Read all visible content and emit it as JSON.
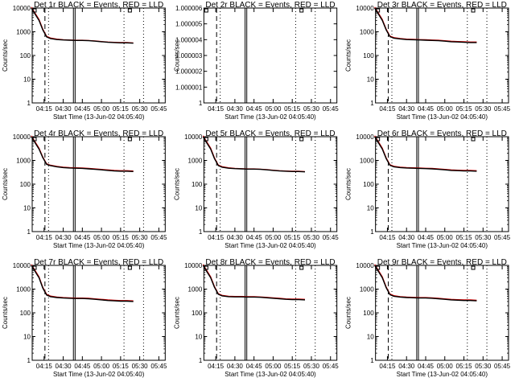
{
  "colors": {
    "events": "#000000",
    "lld": "#d40000",
    "background": "#ffffff",
    "axes": "#000000"
  },
  "chart_data": [
    {
      "type": "line",
      "title": "Det 1r BLACK = Events, RED = LLD",
      "xlabel": "Start Time (13-Jun-02 04:05:40)",
      "ylabel": "Counts/sec",
      "y_scale": "log",
      "ylim": [
        1,
        10000
      ],
      "ytick_labels": [
        "1",
        "10",
        "100",
        "1000",
        "10000"
      ],
      "xlim": [
        "04:05:40",
        "05:50:00"
      ],
      "xtick_labels": [
        "04:15",
        "04:30",
        "04:45",
        "05:00",
        "05:15",
        "05:30",
        "05:45"
      ],
      "x": [
        "04:05",
        "04:08",
        "04:11",
        "04:14",
        "04:17",
        "04:20",
        "04:25",
        "04:30",
        "04:35",
        "04:40",
        "04:45",
        "04:50",
        "04:55",
        "05:00",
        "05:05",
        "05:10",
        "05:15",
        "05:20",
        "05:25"
      ],
      "series": [
        {
          "name": "Events",
          "values": [
            10000,
            5500,
            3000,
            1200,
            600,
            520,
            470,
            450,
            440,
            430,
            430,
            420,
            400,
            380,
            360,
            350,
            340,
            340,
            330
          ]
        },
        {
          "name": "LLD",
          "values": [
            11000,
            6000,
            3300,
            1300,
            640,
            550,
            490,
            460,
            450,
            440,
            440,
            430,
            410,
            390,
            370,
            360,
            350,
            350,
            340
          ]
        }
      ]
    },
    {
      "type": "line",
      "title": "Det 2r BLACK = Events, RED = LLD",
      "xlabel": "Start Time (13-Jun-02 04:05:40)",
      "ylabel": "Counts/sec",
      "y_scale": "log",
      "ylim": [
        1,
        1.000006
      ],
      "ytick_labels": [
        "1",
        "1.000001",
        "1.000002",
        "1.000003",
        "1.000004",
        "1.000005",
        "1.000006"
      ],
      "xlim": [
        "04:05:40",
        "05:50:00"
      ],
      "xtick_labels": [
        "04:15",
        "04:30",
        "04:45",
        "05:00",
        "05:15",
        "05:30",
        "05:45"
      ],
      "x": [],
      "series": []
    },
    {
      "type": "line",
      "title": "Det 3r BLACK = Events, RED = LLD",
      "xlabel": "Start Time (13-Jun-02 04:05:40)",
      "ylabel": "Counts/sec",
      "y_scale": "log",
      "ylim": [
        1,
        10000
      ],
      "ytick_labels": [
        "1",
        "10",
        "100",
        "1000",
        "10000"
      ],
      "xlim": [
        "04:05:40",
        "05:50:00"
      ],
      "xtick_labels": [
        "04:15",
        "04:30",
        "04:45",
        "05:00",
        "05:15",
        "05:30",
        "05:45"
      ],
      "x": [
        "04:05",
        "04:08",
        "04:11",
        "04:14",
        "04:17",
        "04:20",
        "04:25",
        "04:30",
        "04:35",
        "04:40",
        "04:45",
        "04:50",
        "04:55",
        "05:00",
        "05:05",
        "05:10",
        "05:15",
        "05:20",
        "05:25"
      ],
      "series": [
        {
          "name": "Events",
          "values": [
            10000,
            5500,
            3000,
            1200,
            620,
            540,
            500,
            470,
            460,
            450,
            440,
            430,
            420,
            400,
            380,
            370,
            360,
            350,
            350
          ]
        },
        {
          "name": "LLD",
          "values": [
            11000,
            6000,
            3300,
            1300,
            660,
            570,
            520,
            490,
            480,
            470,
            460,
            450,
            440,
            420,
            400,
            390,
            380,
            370,
            370
          ]
        }
      ]
    },
    {
      "type": "line",
      "title": "Det 4r BLACK = Events, RED = LLD",
      "xlabel": "Start Time (13-Jun-02 04:05:40)",
      "ylabel": "Counts/sec",
      "y_scale": "log",
      "ylim": [
        1,
        10000
      ],
      "ytick_labels": [
        "1",
        "10",
        "100",
        "1000",
        "10000"
      ],
      "xlim": [
        "04:05:40",
        "05:50:00"
      ],
      "xtick_labels": [
        "04:15",
        "04:30",
        "04:45",
        "05:00",
        "05:15",
        "05:30",
        "05:45"
      ],
      "x": [
        "04:05",
        "04:08",
        "04:11",
        "04:14",
        "04:17",
        "04:20",
        "04:25",
        "04:30",
        "04:35",
        "04:40",
        "04:45",
        "04:50",
        "04:55",
        "05:00",
        "05:05",
        "05:10",
        "05:15",
        "05:20",
        "05:25"
      ],
      "series": [
        {
          "name": "Events",
          "values": [
            10000,
            5500,
            3000,
            1300,
            680,
            600,
            540,
            500,
            480,
            470,
            460,
            440,
            420,
            400,
            380,
            360,
            350,
            350,
            340
          ]
        },
        {
          "name": "LLD",
          "values": [
            11000,
            6000,
            3300,
            1400,
            720,
            630,
            560,
            520,
            500,
            490,
            480,
            460,
            440,
            420,
            400,
            380,
            370,
            370,
            360
          ]
        }
      ]
    },
    {
      "type": "line",
      "title": "Det 5r BLACK = Events, RED = LLD",
      "xlabel": "Start Time (13-Jun-02 04:05:40)",
      "ylabel": "Counts/sec",
      "y_scale": "log",
      "ylim": [
        1,
        10000
      ],
      "ytick_labels": [
        "1",
        "10",
        "100",
        "1000",
        "10000"
      ],
      "xlim": [
        "04:05:40",
        "05:50:00"
      ],
      "xtick_labels": [
        "04:15",
        "04:30",
        "04:45",
        "05:00",
        "05:15",
        "05:30",
        "05:45"
      ],
      "x": [
        "04:05",
        "04:08",
        "04:11",
        "04:14",
        "04:17",
        "04:20",
        "04:25",
        "04:30",
        "04:35",
        "04:40",
        "04:45",
        "04:50",
        "04:55",
        "05:00",
        "05:05",
        "05:10",
        "05:15",
        "05:20",
        "05:25"
      ],
      "series": [
        {
          "name": "Events",
          "values": [
            10000,
            5500,
            3000,
            1200,
            600,
            520,
            470,
            450,
            440,
            430,
            430,
            420,
            400,
            380,
            360,
            350,
            340,
            340,
            330
          ]
        },
        {
          "name": "LLD",
          "values": [
            11000,
            6000,
            3300,
            1300,
            640,
            550,
            490,
            460,
            450,
            440,
            440,
            430,
            410,
            390,
            370,
            360,
            350,
            350,
            340
          ]
        }
      ]
    },
    {
      "type": "line",
      "title": "Det 6r BLACK = Events, RED = LLD",
      "xlabel": "Start Time (13-Jun-02 04:05:40)",
      "ylabel": "Counts/sec",
      "y_scale": "log",
      "ylim": [
        1,
        10000
      ],
      "ytick_labels": [
        "1",
        "10",
        "100",
        "1000",
        "10000"
      ],
      "xlim": [
        "04:05:40",
        "05:50:00"
      ],
      "xtick_labels": [
        "04:15",
        "04:30",
        "04:45",
        "05:00",
        "05:15",
        "05:30",
        "05:45"
      ],
      "x": [
        "04:05",
        "04:08",
        "04:11",
        "04:14",
        "04:17",
        "04:20",
        "04:25",
        "04:30",
        "04:35",
        "04:40",
        "04:45",
        "04:50",
        "04:55",
        "05:00",
        "05:05",
        "05:10",
        "05:15",
        "05:20",
        "05:25"
      ],
      "series": [
        {
          "name": "Events",
          "values": [
            10000,
            5500,
            3000,
            1200,
            620,
            540,
            500,
            480,
            470,
            460,
            450,
            440,
            420,
            400,
            380,
            370,
            360,
            360,
            350
          ]
        },
        {
          "name": "LLD",
          "values": [
            11000,
            6000,
            3300,
            1300,
            660,
            570,
            520,
            500,
            490,
            480,
            470,
            460,
            440,
            420,
            400,
            390,
            380,
            380,
            370
          ]
        }
      ]
    },
    {
      "type": "line",
      "title": "Det 7r BLACK = Events, RED = LLD",
      "xlabel": "Start Time (13-Jun-02 04:05:40)",
      "ylabel": "Counts/sec",
      "y_scale": "log",
      "ylim": [
        1,
        10000
      ],
      "ytick_labels": [
        "1",
        "10",
        "100",
        "1000",
        "10000"
      ],
      "xlim": [
        "04:05:40",
        "05:50:00"
      ],
      "xtick_labels": [
        "04:15",
        "04:30",
        "04:45",
        "05:00",
        "05:15",
        "05:30",
        "05:45"
      ],
      "x": [
        "04:05",
        "04:08",
        "04:11",
        "04:14",
        "04:17",
        "04:20",
        "04:25",
        "04:30",
        "04:35",
        "04:40",
        "04:45",
        "04:50",
        "04:55",
        "05:00",
        "05:05",
        "05:10",
        "05:15",
        "05:20",
        "05:25"
      ],
      "series": [
        {
          "name": "Events",
          "values": [
            10000,
            5500,
            3000,
            1100,
            560,
            480,
            440,
            420,
            410,
            400,
            400,
            390,
            370,
            350,
            330,
            320,
            310,
            310,
            300
          ]
        },
        {
          "name": "LLD",
          "values": [
            11000,
            6000,
            3300,
            1200,
            600,
            510,
            460,
            440,
            430,
            420,
            420,
            410,
            390,
            370,
            350,
            340,
            330,
            330,
            320
          ]
        }
      ]
    },
    {
      "type": "line",
      "title": "Det 8r BLACK = Events, RED = LLD",
      "xlabel": "Start Time (13-Jun-02 04:05:40)",
      "ylabel": "Counts/sec",
      "y_scale": "log",
      "ylim": [
        1,
        10000
      ],
      "ytick_labels": [
        "1",
        "10",
        "100",
        "1000",
        "10000"
      ],
      "xlim": [
        "04:05:40",
        "05:50:00"
      ],
      "xtick_labels": [
        "04:15",
        "04:30",
        "04:45",
        "05:00",
        "05:15",
        "05:30",
        "05:45"
      ],
      "x": [
        "04:05",
        "04:08",
        "04:11",
        "04:14",
        "04:17",
        "04:20",
        "04:25",
        "04:30",
        "04:35",
        "04:40",
        "04:45",
        "04:50",
        "04:55",
        "05:00",
        "05:05",
        "05:10",
        "05:15",
        "05:20",
        "05:25"
      ],
      "series": [
        {
          "name": "Events",
          "values": [
            10000,
            5500,
            3000,
            1200,
            600,
            520,
            480,
            470,
            470,
            460,
            460,
            450,
            430,
            410,
            390,
            370,
            360,
            360,
            350
          ]
        },
        {
          "name": "LLD",
          "values": [
            11000,
            6000,
            3300,
            1300,
            640,
            550,
            500,
            490,
            490,
            480,
            480,
            470,
            450,
            430,
            410,
            390,
            380,
            380,
            370
          ]
        }
      ]
    },
    {
      "type": "line",
      "title": "Det 9r BLACK = Events, RED = LLD",
      "xlabel": "Start Time (13-Jun-02 04:05:40)",
      "ylabel": "Counts/sec",
      "y_scale": "log",
      "ylim": [
        1,
        10000
      ],
      "ytick_labels": [
        "1",
        "10",
        "100",
        "1000",
        "10000"
      ],
      "xlim": [
        "04:05:40",
        "05:50:00"
      ],
      "xtick_labels": [
        "04:15",
        "04:30",
        "04:45",
        "05:00",
        "05:15",
        "05:30",
        "05:45"
      ],
      "x": [
        "04:05",
        "04:08",
        "04:11",
        "04:14",
        "04:17",
        "04:20",
        "04:25",
        "04:30",
        "04:35",
        "04:40",
        "04:45",
        "04:50",
        "04:55",
        "05:00",
        "05:05",
        "05:10",
        "05:15",
        "05:20",
        "05:25"
      ],
      "series": [
        {
          "name": "Events",
          "values": [
            10000,
            5500,
            3000,
            1150,
            580,
            500,
            460,
            440,
            430,
            420,
            420,
            410,
            390,
            370,
            350,
            340,
            330,
            330,
            320
          ]
        },
        {
          "name": "LLD",
          "values": [
            11000,
            6000,
            3300,
            1250,
            620,
            530,
            480,
            460,
            450,
            440,
            440,
            430,
            410,
            390,
            370,
            360,
            350,
            350,
            340
          ]
        }
      ]
    }
  ]
}
